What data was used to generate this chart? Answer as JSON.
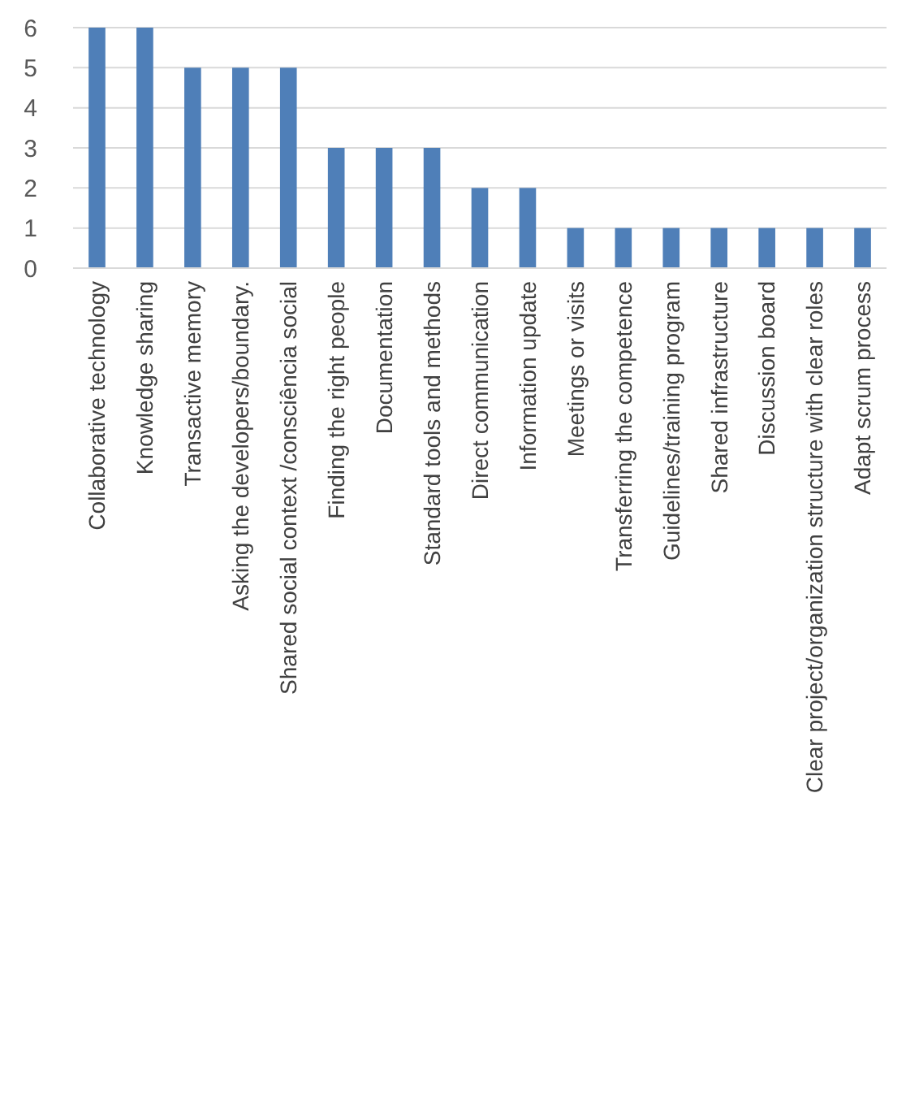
{
  "chart_data": {
    "type": "bar",
    "categories": [
      "Collaborative technology",
      "Knowledge sharing",
      "Transactive memory",
      "Asking  the developers/boundary.",
      "Shared  social context /consciência social",
      "Finding the right people",
      "Documentation",
      "Standard tools and methods",
      "Direct communication",
      "Information update",
      "Meetings or visits",
      "Transferring the competence",
      "Guidelines/training  program",
      "Shared infrastructure",
      "Discussion board",
      "Clear project/organization structure with clear roles",
      "Adapt scrum process"
    ],
    "values": [
      6,
      6,
      5,
      5,
      5,
      3,
      3,
      3,
      2,
      2,
      1,
      1,
      1,
      1,
      1,
      1,
      1
    ],
    "color": "#4f7fb8",
    "ylim": [
      0,
      6
    ],
    "yticks": [
      0,
      1,
      2,
      3,
      4,
      5,
      6
    ],
    "grid": "y"
  }
}
